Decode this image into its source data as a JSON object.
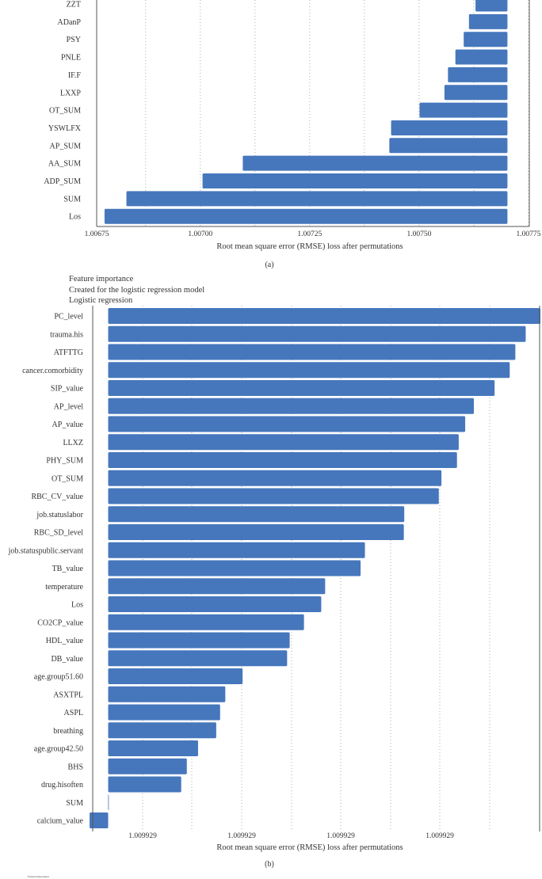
{
  "chart_data": [
    {
      "type": "bar",
      "orientation": "horizontal",
      "panel_label": "(a)",
      "xlabel": "Root mean square error (RMSE) loss after permutations",
      "xlim": [
        1.006763,
        1.007752
      ],
      "xticks": [
        1.00675,
        1.007,
        1.00725,
        1.0075,
        1.00775
      ],
      "xtick_labels": [
        "1.00675",
        "1.00700",
        "1.00725",
        "1.00750",
        "1.00775"
      ],
      "baseline": 1.007702,
      "grid": "vertical dotted",
      "categories": [
        "ZZT",
        "ADanP",
        "PSY",
        "PNLE",
        "IF.F",
        "LXXP",
        "OT_SUM",
        "YSWLFX",
        "AP_SUM",
        "AA_SUM",
        "ADP_SUM",
        "SUM",
        "Los"
      ],
      "values": [
        1.007629,
        1.007614,
        1.007602,
        1.007583,
        1.007566,
        1.007558,
        1.007501,
        1.007436,
        1.007432,
        1.007097,
        1.007005,
        1.006831,
        1.006781
      ],
      "color": "#4677bc"
    },
    {
      "type": "bar",
      "orientation": "horizontal",
      "panel_label": "(b)",
      "title_lines": [
        "Feature importance",
        "Created for the logistic regression model",
        "Logistic regression"
      ],
      "xlabel": "Root mean square error (RMSE) loss after permutations",
      "xtick_labels": [
        "1.009929",
        "1.009929",
        "1.009929",
        "1.009929"
      ],
      "value_scale": "relative loss increase (PC_level = 1)",
      "grid": "vertical dotted",
      "categories": [
        "PC_level",
        "trauma.his",
        "ATFTTG",
        "cancer.comorbidity",
        "SIP_value",
        "AP_level",
        "AP_value",
        "LLXZ",
        "PHY_SUM",
        "OT_SUM",
        "RBC_CV_value",
        "job.statuslabor",
        "RBC_SD_level",
        "job.statuspublic.servant",
        "TB_value",
        "temperature",
        "Los",
        "CO2CP_value",
        "HDL_value",
        "DB_value",
        "age.group51.60",
        "ASXTPL",
        "ASPL",
        "breathing",
        "age.group42.50",
        "BHS",
        "drug.hisoften",
        "SUM",
        "calcium_value"
      ],
      "values": [
        1.0,
        0.966,
        0.942,
        0.929,
        0.894,
        0.846,
        0.826,
        0.811,
        0.807,
        0.771,
        0.765,
        0.685,
        0.684,
        0.594,
        0.584,
        0.502,
        0.493,
        0.453,
        0.42,
        0.414,
        0.311,
        0.271,
        0.259,
        0.25,
        0.208,
        0.182,
        0.169,
        0.0,
        -0.043
      ],
      "color": "#4677bc"
    }
  ],
  "footer_fragment": "Feature importance"
}
